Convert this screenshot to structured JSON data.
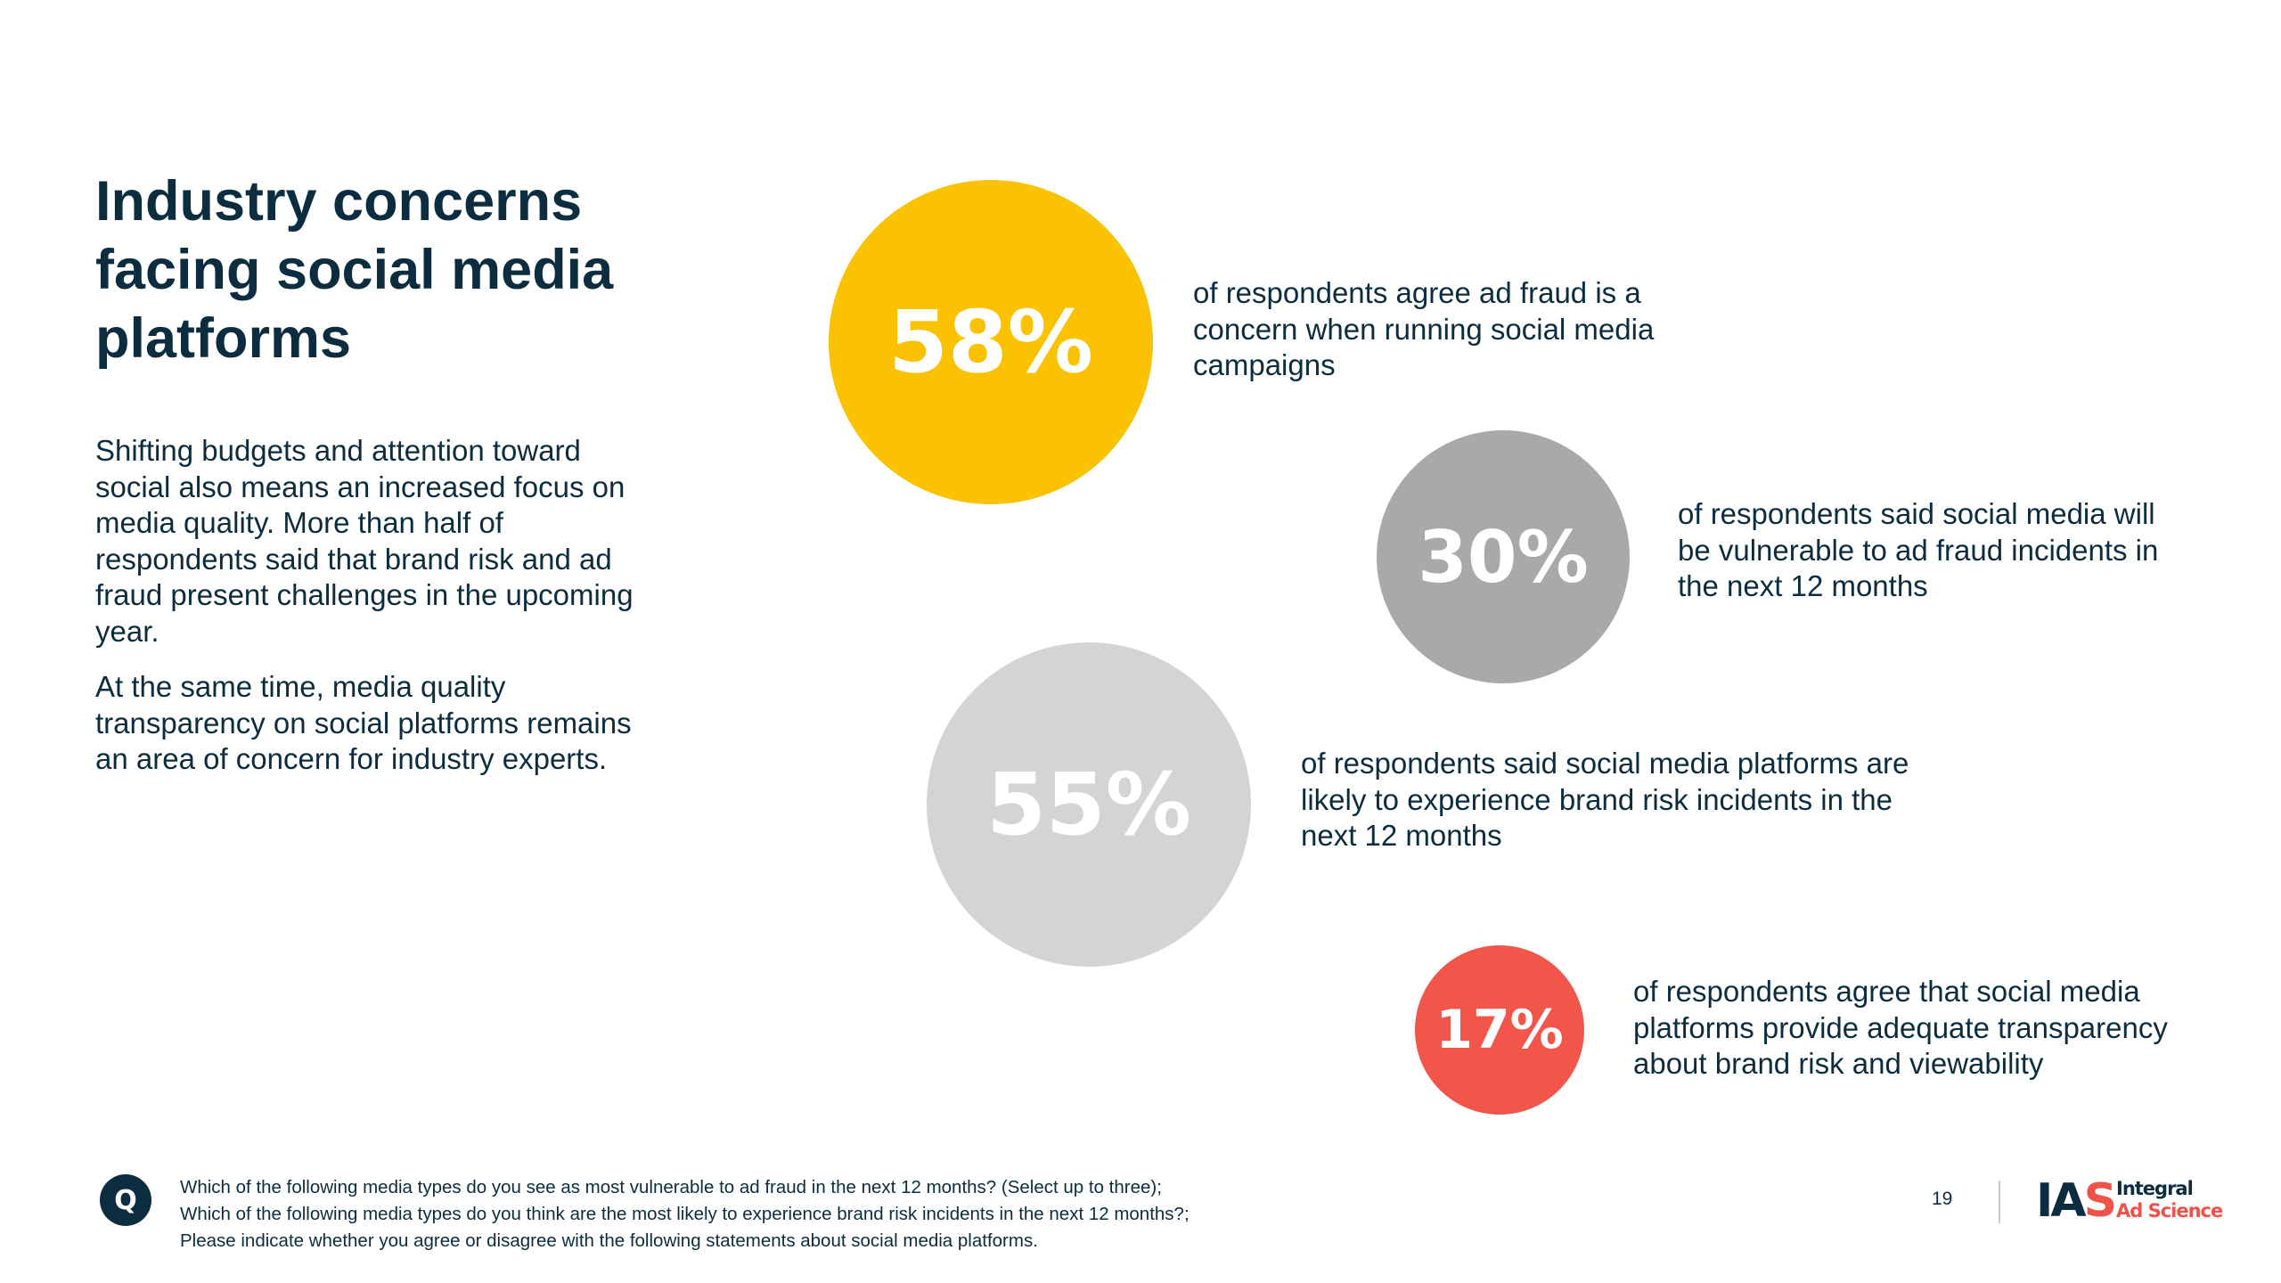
{
  "title": "Industry concerns facing social media platforms",
  "intro": {
    "paragraph1": "Shifting budgets and attention toward social also means an increased focus on media quality. More than half of respondents said that brand risk and ad fraud present challenges in the upcoming year.",
    "paragraph2": "At the same time, media quality transparency on social platforms remains an area of concern for industry experts."
  },
  "stats": [
    {
      "value": "58%",
      "percent": 58,
      "color": "#fac200",
      "text": "of respondents agree ad fraud is a concern when running social media campaigns"
    },
    {
      "value": "30%",
      "percent": 30,
      "color": "#a8a9ab",
      "text": "of respondents said social media will be vulnerable to ad fraud incidents in the next 12 months"
    },
    {
      "value": "55%",
      "percent": 55,
      "color": "#d3d4d6",
      "text": "of respondents said social media platforms are likely to experience brand risk incidents in the next 12 months"
    },
    {
      "value": "17%",
      "percent": 17,
      "color": "#f25549",
      "text": "of respondents agree that social media platforms provide adequate transparency about brand risk and viewability"
    }
  ],
  "footer": {
    "q_label": "Q",
    "questions": [
      "Which of the following media types do you see as most vulnerable to ad fraud in the next 12 months? (Select up to three);",
      "Which of the following media types do you think are the most likely to experience brand risk incidents in the next 12 months?;",
      "Please indicate whether you agree or disagree with the following statements about social media platforms."
    ],
    "page_number": "19"
  },
  "logo": {
    "mark_prefix": "IA",
    "mark_suffix": "S",
    "word1": "Integral",
    "word2": "Ad Science",
    "brand_dark": "#0c2d3f",
    "brand_red": "#f0524a"
  }
}
